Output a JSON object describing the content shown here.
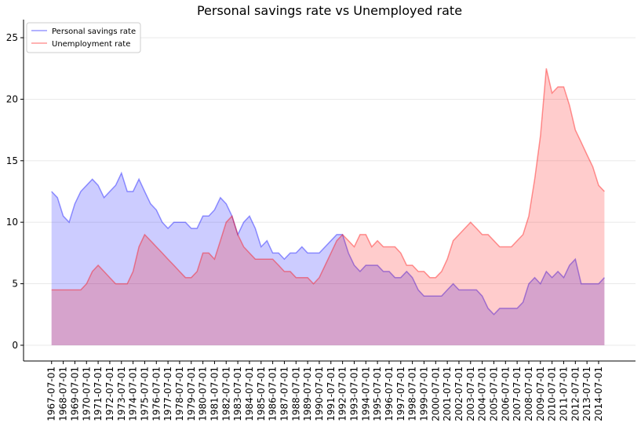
{
  "chart_data": {
    "type": "line",
    "title": "Personal savings rate vs Unemployed rate",
    "x": [
      "1967-07-01",
      "1968-01-01",
      "1968-07-01",
      "1969-01-01",
      "1969-07-01",
      "1970-01-01",
      "1970-07-01",
      "1971-01-01",
      "1971-07-01",
      "1972-01-01",
      "1972-07-01",
      "1973-01-01",
      "1973-07-01",
      "1974-01-01",
      "1974-07-01",
      "1975-01-01",
      "1975-07-01",
      "1976-01-01",
      "1976-07-01",
      "1977-01-01",
      "1977-07-01",
      "1978-01-01",
      "1978-07-01",
      "1979-01-01",
      "1979-07-01",
      "1980-01-01",
      "1980-07-01",
      "1981-01-01",
      "1981-07-01",
      "1982-01-01",
      "1982-07-01",
      "1983-01-01",
      "1983-07-01",
      "1984-01-01",
      "1984-07-01",
      "1985-01-01",
      "1985-07-01",
      "1986-01-01",
      "1986-07-01",
      "1987-01-01",
      "1987-07-01",
      "1988-01-01",
      "1988-07-01",
      "1989-01-01",
      "1989-07-01",
      "1990-01-01",
      "1990-07-01",
      "1991-01-01",
      "1991-07-01",
      "1992-01-01",
      "1992-07-01",
      "1993-01-01",
      "1993-07-01",
      "1994-01-01",
      "1994-07-01",
      "1995-01-01",
      "1995-07-01",
      "1996-01-01",
      "1996-07-01",
      "1997-01-01",
      "1997-07-01",
      "1998-01-01",
      "1998-07-01",
      "1999-01-01",
      "1999-07-01",
      "2000-01-01",
      "2000-07-01",
      "2001-01-01",
      "2001-07-01",
      "2002-01-01",
      "2002-07-01",
      "2003-01-01",
      "2003-07-01",
      "2004-01-01",
      "2004-07-01",
      "2005-01-01",
      "2005-07-01",
      "2006-01-01",
      "2006-07-01",
      "2007-01-01",
      "2007-07-01",
      "2008-01-01",
      "2008-07-01",
      "2009-01-01",
      "2009-07-01",
      "2010-01-01",
      "2010-07-01",
      "2011-01-01",
      "2011-07-01",
      "2012-01-01",
      "2012-07-01",
      "2013-01-01",
      "2013-07-01",
      "2014-01-01",
      "2014-07-01",
      "2015-01-01"
    ],
    "series": [
      {
        "name": "Personal savings rate",
        "color": "#0000ff",
        "values": [
          12.5,
          12.0,
          10.5,
          10.0,
          11.5,
          12.5,
          13.0,
          13.5,
          13.0,
          12.0,
          12.5,
          13.0,
          14.0,
          12.5,
          12.5,
          13.5,
          12.5,
          11.5,
          11.0,
          10.0,
          9.5,
          10.0,
          10.0,
          10.0,
          9.5,
          9.5,
          10.5,
          10.5,
          11.0,
          12.0,
          11.5,
          10.5,
          9.0,
          10.0,
          10.5,
          9.5,
          8.0,
          8.5,
          7.5,
          7.5,
          7.0,
          7.5,
          7.5,
          8.0,
          7.5,
          7.5,
          7.5,
          8.0,
          8.5,
          9.0,
          9.0,
          7.5,
          6.5,
          6.0,
          6.5,
          6.5,
          6.5,
          6.0,
          6.0,
          5.5,
          5.5,
          6.0,
          5.5,
          4.5,
          4.0,
          4.0,
          4.0,
          4.0,
          4.5,
          5.0,
          4.5,
          4.5,
          4.5,
          4.5,
          4.0,
          3.0,
          2.5,
          3.0,
          3.0,
          3.0,
          3.0,
          3.5,
          5.0,
          5.5,
          5.0,
          6.0,
          5.5,
          6.0,
          5.5,
          6.5,
          7.0,
          5.0,
          5.0,
          5.0,
          5.0,
          5.5
        ]
      },
      {
        "name": "Unemployment rate",
        "color": "#ff0000",
        "values": [
          4.5,
          4.5,
          4.5,
          4.5,
          4.5,
          4.5,
          5.0,
          6.0,
          6.5,
          6.0,
          5.5,
          5.0,
          5.0,
          5.0,
          6.0,
          8.0,
          9.0,
          8.5,
          8.0,
          7.5,
          7.0,
          6.5,
          6.0,
          5.5,
          5.5,
          6.0,
          7.5,
          7.5,
          7.0,
          8.5,
          10.0,
          10.5,
          9.0,
          8.0,
          7.5,
          7.0,
          7.0,
          7.0,
          7.0,
          6.5,
          6.0,
          6.0,
          5.5,
          5.5,
          5.5,
          5.0,
          5.5,
          6.5,
          7.5,
          8.5,
          9.0,
          8.5,
          8.0,
          9.0,
          9.0,
          8.0,
          8.5,
          8.0,
          8.0,
          8.0,
          7.5,
          6.5,
          6.5,
          6.0,
          6.0,
          5.5,
          5.5,
          6.0,
          7.0,
          8.5,
          9.0,
          9.5,
          10.0,
          9.5,
          9.0,
          9.0,
          8.5,
          8.0,
          8.0,
          8.0,
          8.5,
          9.0,
          10.5,
          13.5,
          17.0,
          22.5,
          20.5,
          21.0,
          21.0,
          19.5,
          17.5,
          16.5,
          15.5,
          14.5,
          13.0,
          12.5
        ]
      }
    ],
    "xlim": [
      "1965-02-01",
      "2017-09-01"
    ],
    "xticks": [
      "1967-07-01",
      "1968-07-01",
      "1969-07-01",
      "1970-07-01",
      "1971-07-01",
      "1972-07-01",
      "1973-07-01",
      "1974-07-01",
      "1975-07-01",
      "1976-07-01",
      "1977-07-01",
      "1978-07-01",
      "1979-07-01",
      "1980-07-01",
      "1981-07-01",
      "1982-07-01",
      "1983-07-01",
      "1984-07-01",
      "1985-07-01",
      "1986-07-01",
      "1987-07-01",
      "1988-07-01",
      "1989-07-01",
      "1990-07-01",
      "1991-07-01",
      "1992-07-01",
      "1993-07-01",
      "1994-07-01",
      "1995-07-01",
      "1996-07-01",
      "1997-07-01",
      "1998-07-01",
      "1999-07-01",
      "2000-07-01",
      "2001-07-01",
      "2002-07-01",
      "2003-07-01",
      "2004-07-01",
      "2005-07-01",
      "2006-07-01",
      "2007-07-01",
      "2008-07-01",
      "2009-07-01",
      "2010-07-01",
      "2011-07-01",
      "2012-07-01",
      "2013-07-01",
      "2014-07-01"
    ],
    "ylim": [
      -1.28,
      26.47
    ],
    "yticks": [
      0,
      5,
      10,
      15,
      20,
      25
    ],
    "grid": true,
    "legend": "upper-left"
  }
}
